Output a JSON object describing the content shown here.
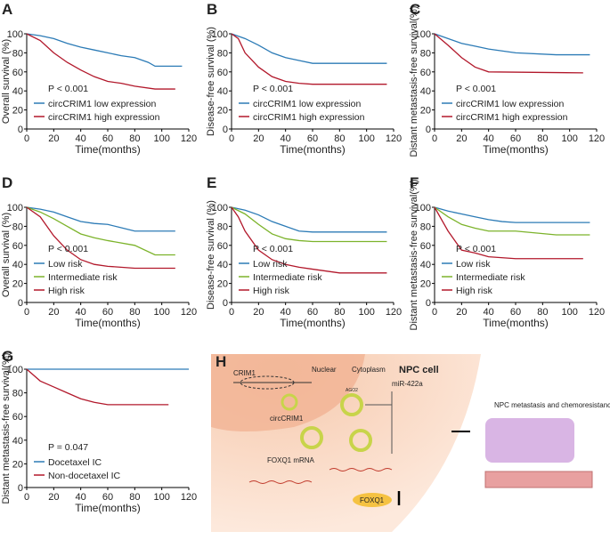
{
  "chart_data": [
    {
      "type": "line",
      "panel_label": "A",
      "y_label": "Overall survival (%)",
      "x_label": "Time(months)",
      "annotation": "P < 0.001",
      "xlim": [
        0,
        120
      ],
      "ylim": [
        0,
        100
      ],
      "xticks": [
        0,
        20,
        40,
        60,
        80,
        100,
        120
      ],
      "yticks": [
        0,
        20,
        40,
        60,
        80,
        100
      ],
      "series": [
        {
          "name": "circCRIM1 low expression",
          "color": "#2c7bb6",
          "x": [
            0,
            10,
            20,
            30,
            40,
            50,
            60,
            70,
            80,
            90,
            95,
            115
          ],
          "values": [
            100,
            98,
            95,
            90,
            86,
            83,
            80,
            77,
            75,
            70,
            66,
            66
          ]
        },
        {
          "name": "circCRIM1 high expression",
          "color": "#b2182b",
          "x": [
            0,
            10,
            20,
            30,
            40,
            50,
            60,
            70,
            80,
            95,
            110
          ],
          "values": [
            100,
            93,
            80,
            70,
            62,
            55,
            50,
            48,
            45,
            42,
            42
          ]
        }
      ]
    },
    {
      "type": "line",
      "panel_label": "B",
      "y_label": "Disease-free survival (%)",
      "x_label": "Time(months)",
      "annotation": "P < 0.001",
      "xlim": [
        0,
        120
      ],
      "ylim": [
        0,
        100
      ],
      "xticks": [
        0,
        20,
        40,
        60,
        80,
        100,
        120
      ],
      "yticks": [
        0,
        20,
        40,
        60,
        80,
        100
      ],
      "series": [
        {
          "name": "circCRIM1 low expression",
          "color": "#2c7bb6",
          "x": [
            0,
            10,
            20,
            30,
            40,
            50,
            60,
            115
          ],
          "values": [
            100,
            95,
            88,
            80,
            75,
            72,
            69,
            69
          ]
        },
        {
          "name": "circCRIM1 high expression",
          "color": "#b2182b",
          "x": [
            0,
            5,
            10,
            20,
            30,
            40,
            50,
            60,
            115
          ],
          "values": [
            100,
            95,
            80,
            65,
            55,
            50,
            48,
            47,
            47
          ]
        }
      ]
    },
    {
      "type": "line",
      "panel_label": "C",
      "y_label": "Distant metastasis-free survival(%)",
      "x_label": "Time(months)",
      "annotation": "P < 0.001",
      "xlim": [
        0,
        120
      ],
      "ylim": [
        0,
        100
      ],
      "xticks": [
        0,
        20,
        40,
        60,
        80,
        100,
        120
      ],
      "yticks": [
        0,
        20,
        40,
        60,
        80,
        100
      ],
      "series": [
        {
          "name": "circCRIM1 low expression",
          "color": "#2c7bb6",
          "x": [
            0,
            10,
            20,
            30,
            40,
            50,
            60,
            90,
            115
          ],
          "values": [
            100,
            95,
            90,
            87,
            84,
            82,
            80,
            78,
            78
          ]
        },
        {
          "name": "circCRIM1 high expression",
          "color": "#b2182b",
          "x": [
            0,
            10,
            20,
            30,
            40,
            110
          ],
          "values": [
            100,
            88,
            75,
            65,
            60,
            59
          ]
        }
      ]
    },
    {
      "type": "line",
      "panel_label": "D",
      "y_label": "Overall survival (%)",
      "x_label": "Time(months)",
      "annotation": "P < 0.001",
      "xlim": [
        0,
        120
      ],
      "ylim": [
        0,
        100
      ],
      "xticks": [
        0,
        20,
        40,
        60,
        80,
        100,
        120
      ],
      "yticks": [
        0,
        20,
        40,
        60,
        80,
        100
      ],
      "series": [
        {
          "name": "Low risk",
          "color": "#2c7bb6",
          "x": [
            0,
            10,
            20,
            30,
            40,
            50,
            60,
            80,
            110
          ],
          "values": [
            100,
            98,
            95,
            90,
            85,
            83,
            82,
            75,
            75
          ]
        },
        {
          "name": "Intermediate risk",
          "color": "#7cb32b",
          "x": [
            0,
            10,
            20,
            30,
            40,
            50,
            60,
            80,
            95,
            110
          ],
          "values": [
            100,
            95,
            88,
            80,
            72,
            68,
            65,
            60,
            50,
            50
          ]
        },
        {
          "name": "High risk",
          "color": "#b2182b",
          "x": [
            0,
            10,
            20,
            30,
            40,
            50,
            60,
            80,
            110
          ],
          "values": [
            100,
            90,
            70,
            55,
            45,
            40,
            38,
            36,
            36
          ]
        }
      ]
    },
    {
      "type": "line",
      "panel_label": "E",
      "y_label": "Disease-free survival (%)",
      "x_label": "Time(months)",
      "annotation": "P < 0.001",
      "xlim": [
        0,
        120
      ],
      "ylim": [
        0,
        100
      ],
      "xticks": [
        0,
        20,
        40,
        60,
        80,
        100,
        120
      ],
      "yticks": [
        0,
        20,
        40,
        60,
        80,
        100
      ],
      "series": [
        {
          "name": "Low risk",
          "color": "#2c7bb6",
          "x": [
            0,
            10,
            20,
            30,
            40,
            50,
            60,
            115
          ],
          "values": [
            100,
            97,
            92,
            85,
            80,
            75,
            74,
            74
          ]
        },
        {
          "name": "Intermediate risk",
          "color": "#7cb32b",
          "x": [
            0,
            10,
            20,
            30,
            40,
            50,
            60,
            115
          ],
          "values": [
            100,
            93,
            82,
            72,
            67,
            65,
            64,
            64
          ]
        },
        {
          "name": "High risk",
          "color": "#b2182b",
          "x": [
            0,
            5,
            10,
            20,
            30,
            40,
            50,
            60,
            80,
            115
          ],
          "values": [
            100,
            90,
            75,
            55,
            45,
            40,
            37,
            35,
            31,
            31
          ]
        }
      ]
    },
    {
      "type": "line",
      "panel_label": "F",
      "y_label": "Distant metastasis-free survival(%)",
      "x_label": "Time(months)",
      "annotation": "P < 0.001",
      "xlim": [
        0,
        120
      ],
      "ylim": [
        0,
        100
      ],
      "xticks": [
        0,
        20,
        40,
        60,
        80,
        100,
        120
      ],
      "yticks": [
        0,
        20,
        40,
        60,
        80,
        100
      ],
      "series": [
        {
          "name": "Low risk",
          "color": "#2c7bb6",
          "x": [
            0,
            10,
            20,
            30,
            40,
            50,
            60,
            115
          ],
          "values": [
            100,
            96,
            93,
            90,
            87,
            85,
            84,
            84
          ]
        },
        {
          "name": "Intermediate risk",
          "color": "#7cb32b",
          "x": [
            0,
            10,
            20,
            30,
            40,
            60,
            90,
            115
          ],
          "values": [
            100,
            90,
            82,
            78,
            75,
            75,
            71,
            71
          ]
        },
        {
          "name": "High risk",
          "color": "#b2182b",
          "x": [
            0,
            10,
            20,
            30,
            40,
            60,
            110
          ],
          "values": [
            100,
            75,
            55,
            52,
            48,
            46,
            46
          ]
        }
      ]
    },
    {
      "type": "line",
      "panel_label": "G",
      "y_label": "Distant metastasis-free survival(%)",
      "x_label": "Time(months)",
      "annotation": "P = 0.047",
      "xlim": [
        0,
        120
      ],
      "ylim": [
        0,
        100
      ],
      "xticks": [
        0,
        20,
        40,
        60,
        80,
        100,
        120
      ],
      "yticks": [
        0,
        20,
        40,
        60,
        80,
        100
      ],
      "series": [
        {
          "name": "Docetaxel IC",
          "color": "#2c7bb6",
          "x": [
            0,
            120
          ],
          "values": [
            100,
            100
          ]
        },
        {
          "name": "Non-docetaxel IC",
          "color": "#b2182b",
          "x": [
            0,
            5,
            10,
            20,
            30,
            40,
            50,
            60,
            105
          ],
          "values": [
            100,
            95,
            90,
            85,
            80,
            75,
            72,
            70,
            70
          ]
        }
      ]
    }
  ],
  "diagram": {
    "panel_label": "H",
    "crim1": "CRIM1",
    "nuclear": "Nuclear",
    "cytoplasm": "Cytoplasm",
    "cell": "NPC cell",
    "mirna": "miR-422a",
    "circ": "circCRIM1",
    "ago": "AGO2",
    "mrna": "FOXQ1 mRNA",
    "protein": "FOXQ1",
    "outcome": "NPC metastasis and chemoresistance"
  }
}
